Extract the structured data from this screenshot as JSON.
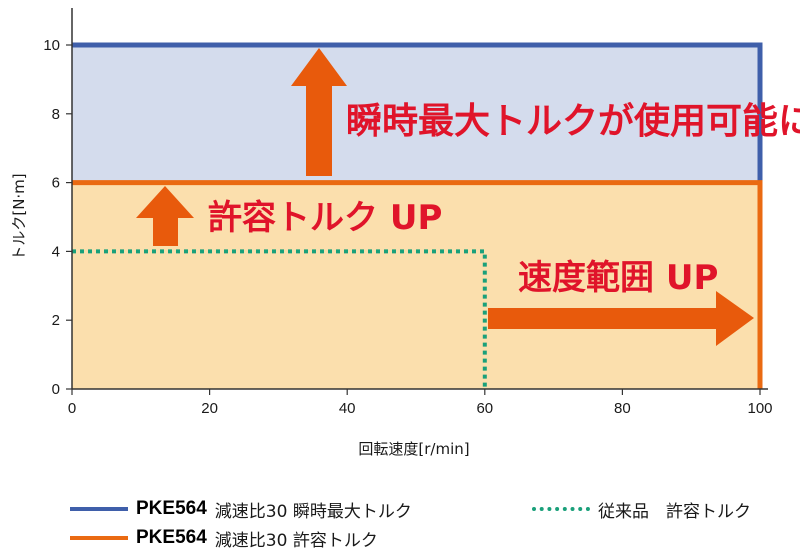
{
  "chart_data": {
    "type": "line",
    "ylabel": "トルク[N·m]",
    "xlabel": "回転速度[r/min]",
    "xlim": [
      0,
      100
    ],
    "ylim": [
      0,
      10
    ],
    "x_ticks": [
      "0",
      "20",
      "40",
      "60",
      "80",
      "100"
    ],
    "y_ticks": [
      "0",
      "2",
      "4",
      "6",
      "8",
      "10"
    ],
    "grid": false,
    "series": [
      {
        "name": "PKE564 減速比30 瞬時最大トルク",
        "model": "PKE564",
        "desc": "減速比30 瞬時最大トルク",
        "color": "#3f5faa",
        "style": "solid",
        "points": [
          [
            0,
            10
          ],
          [
            100,
            10
          ],
          [
            100,
            0
          ]
        ]
      },
      {
        "name": "PKE564 減速比30 許容トルク",
        "model": "PKE564",
        "desc": "減速比30 許容トルク",
        "color": "#ea6a12",
        "style": "solid",
        "points": [
          [
            0,
            6
          ],
          [
            100,
            6
          ],
          [
            100,
            0
          ]
        ]
      },
      {
        "name": "従来品 許容トルク",
        "model": "",
        "desc": "従来品　許容トルク",
        "color": "#1aa07a",
        "style": "dotted",
        "points": [
          [
            0,
            4
          ],
          [
            60,
            4
          ],
          [
            60,
            0
          ]
        ]
      }
    ],
    "annotations": {
      "instant": "瞬時最大トルクが使用可能に",
      "allowable": "許容トルク UP",
      "speed": "速度範囲 UP"
    },
    "colors": {
      "region_instant": "#d4dced",
      "region_allowable": "#fbdfad",
      "arrow": "#e85a0c",
      "annotation_text": "#e0142a"
    }
  }
}
